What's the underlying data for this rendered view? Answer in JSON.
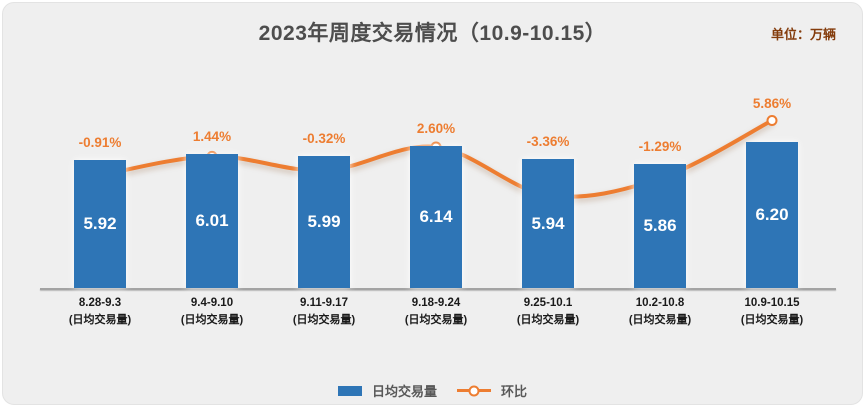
{
  "chart": {
    "title": "2023年周度交易情况（10.9-10.15）",
    "unit_label": "单位：万辆",
    "legend": {
      "bar": "日均交易量",
      "line": "环比"
    }
  },
  "chart_data": {
    "type": "bar+line",
    "title": "2023年周度交易情况（10.9-10.15）",
    "unit": "万辆",
    "categories": [
      "8.28-9.3",
      "9.4-9.10",
      "9.11-9.17",
      "9.18-9.24",
      "9.25-10.1",
      "10.2-10.8",
      "10.9-10.15"
    ],
    "category_sublabel": "(日均交易量)",
    "series": [
      {
        "name": "日均交易量",
        "type": "bar",
        "axis": "primary",
        "values": [
          5.92,
          6.01,
          5.99,
          6.14,
          5.94,
          5.86,
          6.2
        ],
        "labels": [
          "5.92",
          "6.01",
          "5.99",
          "6.14",
          "5.94",
          "5.86",
          "6.20"
        ],
        "color": "#2E75B6",
        "label_color": "#ffffff"
      },
      {
        "name": "环比",
        "type": "line",
        "axis": "secondary",
        "values_pct": [
          -0.91,
          1.44,
          -0.32,
          2.6,
          -3.36,
          -1.29,
          5.86
        ],
        "labels": [
          "-0.91%",
          "1.44%",
          "-0.32%",
          "2.60%",
          "-3.36%",
          "-1.29%",
          "5.86%"
        ],
        "color": "#ED7D31",
        "marker": "hollow-circle"
      }
    ],
    "legend_position": "bottom",
    "grid": false,
    "value_labels_shown": true
  },
  "colors": {
    "background": "#efefef",
    "bar_blue": "#2E75B6",
    "line_orange": "#ED7D31",
    "title_gray": "#4d4d4d",
    "unit_brown": "#843C0C",
    "axis_gray": "#a3a3a3"
  }
}
